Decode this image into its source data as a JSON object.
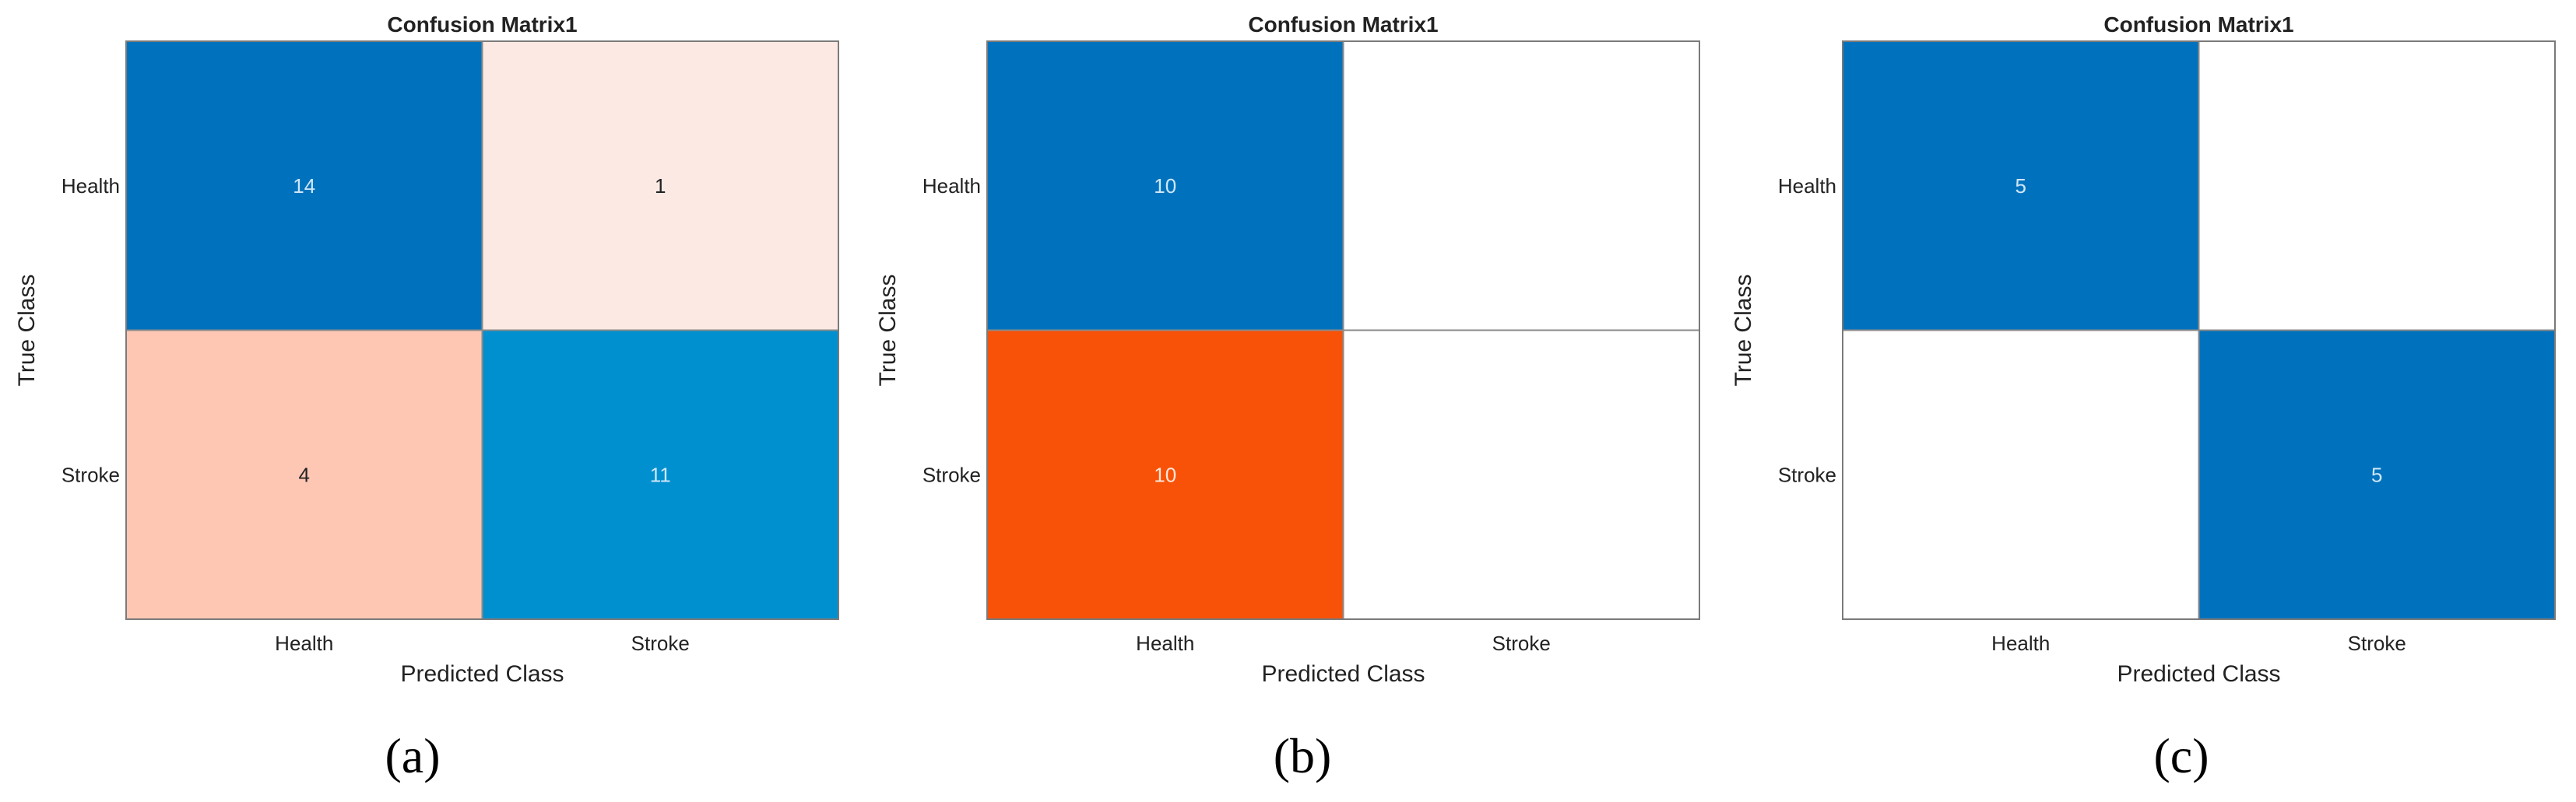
{
  "chart_data": [
    {
      "type": "heatmap",
      "panel_label": "a",
      "title": "Confusion Matrix1",
      "xlabel": "Predicted Class",
      "ylabel": "True Class",
      "x_categories": [
        "Health",
        "Stroke"
      ],
      "y_categories": [
        "Health",
        "Stroke"
      ],
      "values": [
        [
          14,
          1
        ],
        [
          4,
          11
        ]
      ],
      "cell_colors": [
        [
          "#0072bd",
          "#fde9e3"
        ],
        [
          "#fdc7b4",
          "#0090cf"
        ]
      ],
      "text_colors": [
        [
          "#cfe6f7",
          "#222222"
        ],
        [
          "#222222",
          "#cfe6f7"
        ]
      ]
    },
    {
      "type": "heatmap",
      "panel_label": "b",
      "title": "Confusion Matrix1",
      "xlabel": "Predicted Class",
      "ylabel": "True Class",
      "x_categories": [
        "Health",
        "Stroke"
      ],
      "y_categories": [
        "Health",
        "Stroke"
      ],
      "values": [
        [
          10,
          null
        ],
        [
          10,
          null
        ]
      ],
      "cell_colors": [
        [
          "#0072bd",
          "#ffffff"
        ],
        [
          "#f85208",
          "#ffffff"
        ]
      ],
      "text_colors": [
        [
          "#cfe6f7",
          "#222222"
        ],
        [
          "#ffe6da",
          "#222222"
        ]
      ]
    },
    {
      "type": "heatmap",
      "panel_label": "c",
      "title": "Confusion Matrix1",
      "xlabel": "Predicted Class",
      "ylabel": "True Class",
      "x_categories": [
        "Health",
        "Stroke"
      ],
      "y_categories": [
        "Health",
        "Stroke"
      ],
      "values": [
        [
          5,
          null
        ],
        [
          null,
          5
        ]
      ],
      "cell_colors": [
        [
          "#0072bd",
          "#ffffff"
        ],
        [
          "#ffffff",
          "#0072bd"
        ]
      ],
      "text_colors": [
        [
          "#cfe6f7",
          "#222222"
        ],
        [
          "#222222",
          "#cfe6f7"
        ]
      ]
    }
  ],
  "captions": {
    "a": "(a)",
    "b": "(b)",
    "c": "(c)"
  }
}
